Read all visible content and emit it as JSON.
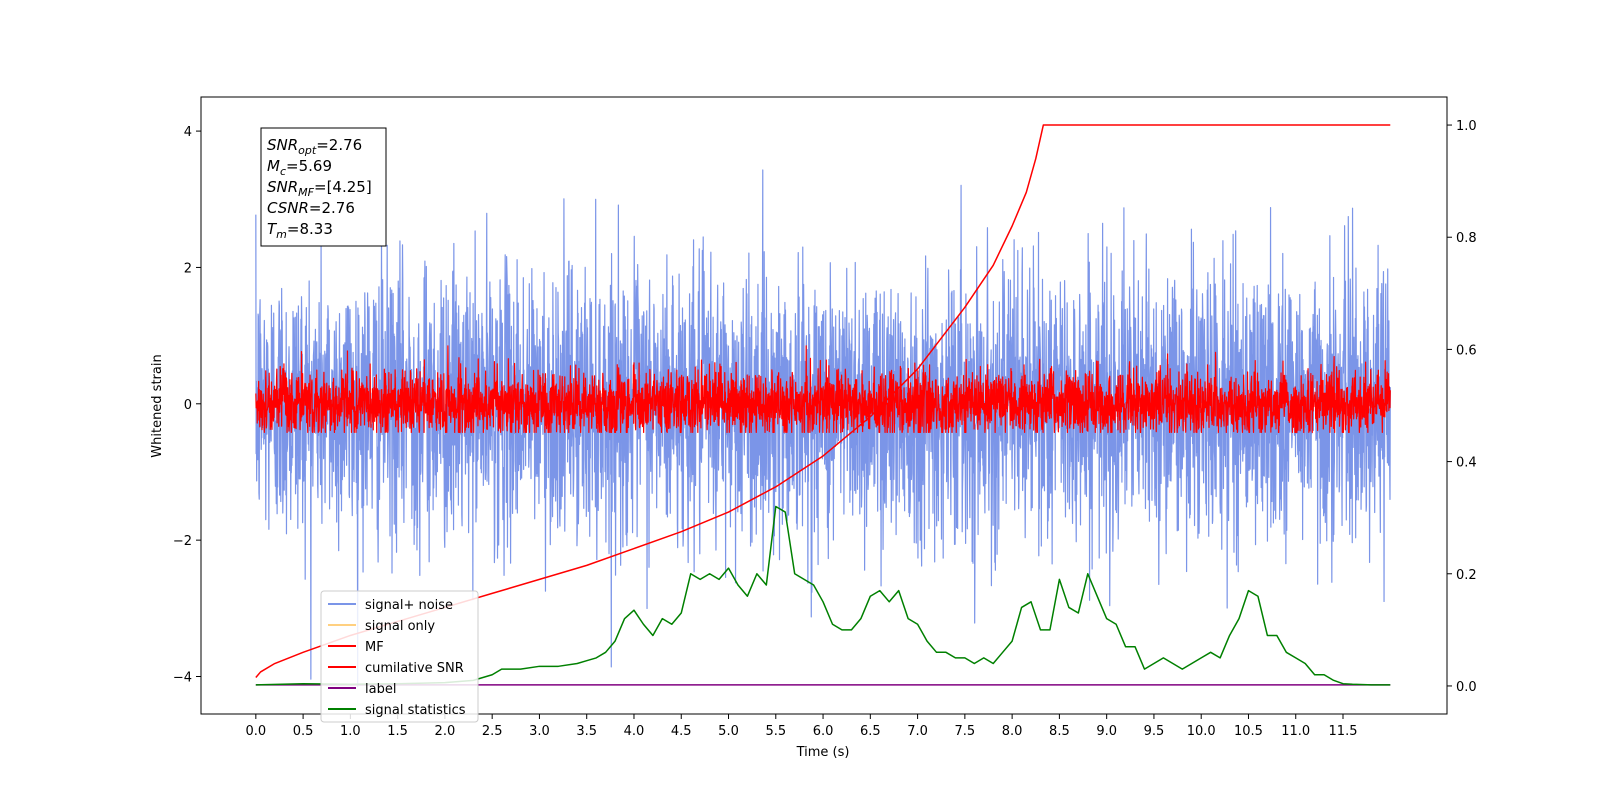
{
  "chart_data": {
    "type": "line",
    "title": "",
    "xlabel": "Time (s)",
    "ylabel": "Whitened strain",
    "xlim": [
      -0.58,
      12.6
    ],
    "ylim": [
      -4.55,
      4.5
    ],
    "y2lim": [
      -0.05,
      1.05
    ],
    "x_ticks": [
      "0.0",
      "0.5",
      "1.0",
      "1.5",
      "2.0",
      "2.5",
      "3.0",
      "3.5",
      "4.0",
      "4.5",
      "5.0",
      "5.5",
      "6.0",
      "6.5",
      "7.0",
      "7.5",
      "8.0",
      "8.5",
      "9.0",
      "9.5",
      "10.0",
      "10.5",
      "11.0",
      "11.5"
    ],
    "y_ticks": [
      "4",
      "2",
      "0",
      "−2",
      "−4"
    ],
    "y2_ticks": [
      "1.0",
      "0.8",
      "0.6",
      "0.4",
      "0.2",
      "0.0"
    ],
    "grid": false,
    "legend_position": "lower-left",
    "info_box": {
      "lines": [
        {
          "name": "SNR",
          "sub": "opt",
          "value": "=2.76"
        },
        {
          "name": "M",
          "sub": "c",
          "value": "=5.69"
        },
        {
          "name": "SNR",
          "sub": "MF",
          "value": "=[4.25]"
        },
        {
          "name": "CSNR",
          "sub": "",
          "value": "=2.76"
        },
        {
          "name": "T",
          "sub": "m",
          "value": "=8.33"
        }
      ]
    },
    "series": [
      {
        "name": "signal+ noise",
        "color": "#7b95e8",
        "axis": "left",
        "kind": "noise",
        "x_range": [
          0.0,
          12.0
        ],
        "std": 1.0,
        "peak_max": 4.08,
        "peak_min": -4.15
      },
      {
        "name": "signal only",
        "color": "#ffd080",
        "axis": "left",
        "kind": "hidden"
      },
      {
        "name": "MF",
        "color": "#ff0000",
        "axis": "left",
        "kind": "noise",
        "x_range": [
          0.0,
          12.0
        ],
        "std": 0.25,
        "peak_max": 0.85,
        "peak_min": -0.42
      },
      {
        "name": "cumilative SNR",
        "color": "#ff0000",
        "axis": "right",
        "x": [
          0.0,
          0.05,
          0.2,
          0.5,
          1.0,
          1.5,
          2.0,
          2.5,
          3.0,
          3.5,
          4.0,
          4.5,
          5.0,
          5.5,
          6.0,
          6.5,
          7.0,
          7.5,
          7.8,
          8.0,
          8.15,
          8.25,
          8.33,
          8.5,
          9.0,
          10.0,
          11.0,
          12.0
        ],
        "values": [
          0.015,
          0.025,
          0.04,
          0.06,
          0.09,
          0.115,
          0.14,
          0.165,
          0.19,
          0.215,
          0.245,
          0.275,
          0.31,
          0.355,
          0.41,
          0.48,
          0.565,
          0.675,
          0.75,
          0.82,
          0.88,
          0.94,
          1.0,
          1.0,
          1.0,
          1.0,
          1.0,
          1.0
        ]
      },
      {
        "name": "label",
        "color": "#800080",
        "axis": "right",
        "x": [
          0.0,
          12.0
        ],
        "values": [
          0.002,
          0.002
        ]
      },
      {
        "name": "signal statistics",
        "color": "#008000",
        "axis": "right",
        "x": [
          0.0,
          0.5,
          1.0,
          1.5,
          2.0,
          2.3,
          2.5,
          2.6,
          2.8,
          3.0,
          3.2,
          3.4,
          3.5,
          3.6,
          3.7,
          3.8,
          3.9,
          4.0,
          4.1,
          4.2,
          4.3,
          4.4,
          4.5,
          4.6,
          4.7,
          4.8,
          4.9,
          5.0,
          5.1,
          5.2,
          5.3,
          5.4,
          5.5,
          5.6,
          5.7,
          5.8,
          5.9,
          6.0,
          6.1,
          6.2,
          6.3,
          6.4,
          6.5,
          6.6,
          6.7,
          6.8,
          6.9,
          7.0,
          7.1,
          7.2,
          7.3,
          7.4,
          7.5,
          7.6,
          7.7,
          7.8,
          7.9,
          8.0,
          8.1,
          8.2,
          8.3,
          8.4,
          8.5,
          8.6,
          8.7,
          8.8,
          8.9,
          9.0,
          9.1,
          9.2,
          9.3,
          9.4,
          9.5,
          9.6,
          9.7,
          9.8,
          9.9,
          10.0,
          10.1,
          10.2,
          10.3,
          10.4,
          10.5,
          10.6,
          10.7,
          10.8,
          10.9,
          11.0,
          11.1,
          11.2,
          11.3,
          11.4,
          11.5,
          11.6,
          11.8,
          12.0
        ],
        "values": [
          0.002,
          0.004,
          0.003,
          0.004,
          0.006,
          0.01,
          0.02,
          0.03,
          0.03,
          0.035,
          0.035,
          0.04,
          0.045,
          0.05,
          0.06,
          0.08,
          0.12,
          0.135,
          0.11,
          0.09,
          0.12,
          0.11,
          0.13,
          0.2,
          0.19,
          0.2,
          0.19,
          0.21,
          0.18,
          0.16,
          0.2,
          0.18,
          0.32,
          0.31,
          0.2,
          0.19,
          0.18,
          0.15,
          0.11,
          0.1,
          0.1,
          0.12,
          0.16,
          0.17,
          0.15,
          0.17,
          0.12,
          0.11,
          0.08,
          0.06,
          0.06,
          0.05,
          0.05,
          0.04,
          0.05,
          0.04,
          0.06,
          0.08,
          0.14,
          0.15,
          0.1,
          0.1,
          0.19,
          0.14,
          0.13,
          0.2,
          0.16,
          0.12,
          0.11,
          0.07,
          0.07,
          0.03,
          0.04,
          0.05,
          0.04,
          0.03,
          0.04,
          0.05,
          0.06,
          0.05,
          0.09,
          0.12,
          0.17,
          0.16,
          0.09,
          0.09,
          0.06,
          0.05,
          0.04,
          0.02,
          0.02,
          0.01,
          0.004,
          0.003,
          0.002,
          0.002
        ]
      }
    ]
  }
}
